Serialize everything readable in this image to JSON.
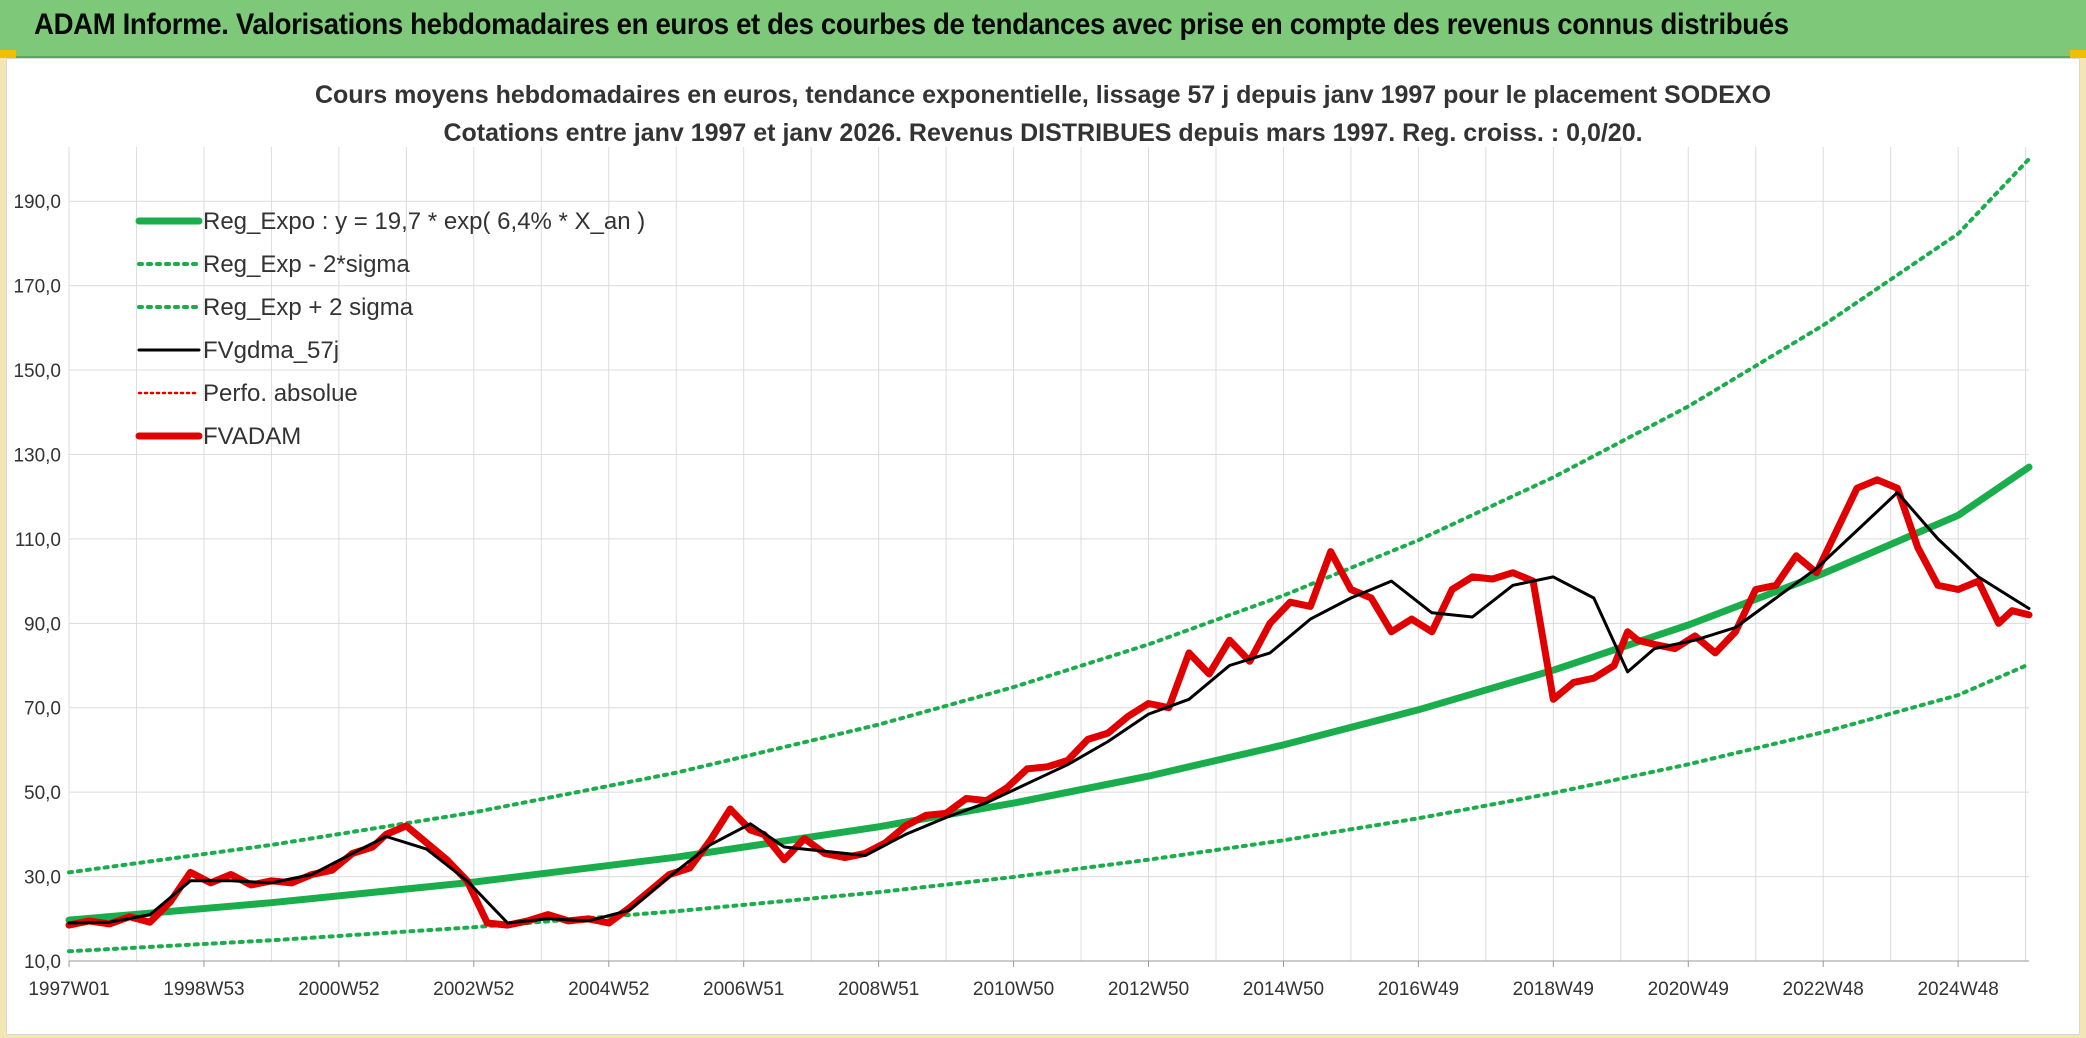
{
  "header": {
    "title": "ADAM Informe. Valorisations hebdomadaires en euros et des courbes de tendances avec prise en compte des revenus connus distribués"
  },
  "colors": {
    "header_bg": "#7ec87a",
    "trend_green": "#1aad4b",
    "price_red": "#e00000",
    "smooth_black": "#000000",
    "grid": "#dcdcdc"
  },
  "chart_data": {
    "type": "line",
    "title": "Cours moyens hebdomadaires en euros, tendance exponentielle, lissage 57 j depuis janv 1997 pour le placement SODEXO",
    "subtitle": "Cotations entre janv 1997 et janv 2026. Revenus DISTRIBUES depuis mars 1997. Reg. croiss. : 0,0/20.",
    "xlabel": "",
    "ylabel": "",
    "x_range": [
      1997.0,
      2026.05
    ],
    "ylim": [
      10,
      200
    ],
    "y_ticks": [
      "10,0",
      "30,0",
      "50,0",
      "70,0",
      "90,0",
      "110,0",
      "130,0",
      "150,0",
      "170,0",
      "190,0"
    ],
    "x_ticks": [
      {
        "label": "1997W01",
        "x": 1997.0
      },
      {
        "label": "1998W53",
        "x": 1999.0
      },
      {
        "label": "2000W52",
        "x": 2001.0
      },
      {
        "label": "2002W52",
        "x": 2003.0
      },
      {
        "label": "2004W52",
        "x": 2005.0
      },
      {
        "label": "2006W51",
        "x": 2007.0
      },
      {
        "label": "2008W51",
        "x": 2009.0
      },
      {
        "label": "2010W50",
        "x": 2011.0
      },
      {
        "label": "2012W50",
        "x": 2013.0
      },
      {
        "label": "2014W50",
        "x": 2015.0
      },
      {
        "label": "2016W49",
        "x": 2017.0
      },
      {
        "label": "2018W49",
        "x": 2019.0
      },
      {
        "label": "2020W49",
        "x": 2021.0
      },
      {
        "label": "2022W48",
        "x": 2023.0
      },
      {
        "label": "2024W48",
        "x": 2025.0
      }
    ],
    "grid": true,
    "legend_position": "top-left",
    "legend": [
      {
        "label": "Reg_Expo : y = 19,7 * exp( 6,4% *  X_an )",
        "style": "solid-thick",
        "color": "#1aad4b"
      },
      {
        "label": "Reg_Exp - 2*sigma",
        "style": "dotted",
        "color": "#1aad4b"
      },
      {
        "label": "Reg_Exp + 2 sigma",
        "style": "dotted",
        "color": "#1aad4b"
      },
      {
        "label": "FVgdma_57j",
        "style": "solid",
        "color": "#000000"
      },
      {
        "label": "Perfo. absolue",
        "style": "dotted-thin",
        "color": "#e00000"
      },
      {
        "label": "FVADAM",
        "style": "solid-thick",
        "color": "#e00000"
      }
    ],
    "series": [
      {
        "name": "Reg_Expo : y = 19,7 * exp( 6,4% *  X_an )",
        "color": "#1aad4b",
        "style": "solid-thick",
        "x": [
          1997.0,
          2000.0,
          2003.0,
          2006.0,
          2009.0,
          2011.0,
          2013.0,
          2015.0,
          2017.0,
          2019.0,
          2021.0,
          2023.0,
          2025.0,
          2026.05
        ],
        "values": [
          19.7,
          23.8,
          28.7,
          34.6,
          41.8,
          47.4,
          53.8,
          61.2,
          69.5,
          78.9,
          89.6,
          101.8,
          115.6,
          127.0
        ]
      },
      {
        "name": "Reg_Exp - 2*sigma",
        "color": "#1aad4b",
        "style": "dotted",
        "x": [
          1997.0,
          2000.0,
          2003.0,
          2006.0,
          2009.0,
          2011.0,
          2013.0,
          2015.0,
          2017.0,
          2019.0,
          2021.0,
          2023.0,
          2025.0,
          2026.05
        ],
        "values": [
          12.3,
          14.9,
          18.0,
          21.8,
          26.3,
          29.9,
          34.0,
          38.6,
          43.8,
          49.8,
          56.6,
          64.2,
          73.0,
          80.3
        ]
      },
      {
        "name": "Reg_Exp + 2 sigma",
        "color": "#1aad4b",
        "style": "dotted",
        "x": [
          1997.0,
          2000.0,
          2003.0,
          2006.0,
          2009.0,
          2011.0,
          2013.0,
          2015.0,
          2017.0,
          2019.0,
          2021.0,
          2023.0,
          2025.0,
          2026.05
        ],
        "values": [
          31.0,
          37.5,
          45.2,
          54.6,
          66.0,
          74.9,
          85.0,
          96.6,
          109.7,
          124.6,
          141.4,
          160.6,
          182.3,
          200.0
        ]
      },
      {
        "name": "FVADAM",
        "color": "#e00000",
        "style": "solid-thick",
        "x": [
          1997.0,
          1997.3,
          1997.6,
          1997.9,
          1998.2,
          1998.5,
          1998.8,
          1999.1,
          1999.4,
          1999.7,
          2000.0,
          2000.3,
          2000.6,
          2000.9,
          2001.2,
          2001.5,
          2001.7,
          2002.0,
          2002.3,
          2002.6,
          2002.9,
          2003.2,
          2003.5,
          2003.8,
          2004.1,
          2004.4,
          2004.7,
          2005.0,
          2005.3,
          2005.6,
          2005.9,
          2006.2,
          2006.5,
          2006.8,
          2007.1,
          2007.3,
          2007.6,
          2007.9,
          2008.2,
          2008.5,
          2008.8,
          2009.1,
          2009.4,
          2009.7,
          2010.0,
          2010.3,
          2010.6,
          2010.9,
          2011.2,
          2011.5,
          2011.8,
          2012.1,
          2012.4,
          2012.7,
          2013.0,
          2013.3,
          2013.6,
          2013.9,
          2014.2,
          2014.5,
          2014.8,
          2015.1,
          2015.4,
          2015.7,
          2016.0,
          2016.3,
          2016.6,
          2016.9,
          2017.2,
          2017.5,
          2017.8,
          2018.1,
          2018.4,
          2018.7,
          2019.0,
          2019.3,
          2019.6,
          2019.9,
          2020.1,
          2020.25,
          2020.5,
          2020.8,
          2021.1,
          2021.4,
          2021.7,
          2022.0,
          2022.3,
          2022.6,
          2022.9,
          2023.2,
          2023.5,
          2023.8,
          2024.1,
          2024.4,
          2024.7,
          2025.0,
          2025.3,
          2025.6,
          2025.8,
          2026.05
        ],
        "values": [
          18.5,
          19.5,
          18.8,
          20.5,
          19.2,
          24.0,
          31.0,
          28.5,
          30.5,
          28.0,
          29.0,
          28.5,
          30.5,
          31.5,
          35.5,
          37.0,
          40.0,
          42.0,
          38.0,
          34.0,
          29.0,
          19.0,
          18.5,
          19.5,
          21.0,
          19.5,
          20.0,
          19.0,
          22.5,
          26.5,
          30.5,
          32.0,
          38.5,
          46.0,
          41.0,
          40.0,
          34.0,
          39.0,
          35.5,
          34.5,
          35.5,
          38.0,
          42.0,
          44.5,
          45.0,
          48.5,
          48.0,
          51.0,
          55.5,
          56.0,
          57.5,
          62.5,
          64.0,
          68.0,
          71.0,
          70.0,
          83.0,
          78.0,
          86.0,
          81.0,
          90.0,
          95.0,
          94.0,
          107.0,
          98.0,
          96.0,
          88.0,
          91.0,
          88.0,
          98.0,
          101.0,
          100.5,
          102.0,
          100.0,
          72.0,
          76.0,
          77.0,
          80.0,
          88.0,
          86.0,
          85.0,
          84.0,
          87.0,
          83.0,
          88.0,
          98.0,
          99.0,
          106.0,
          102.0,
          112.0,
          122.0,
          124.0,
          122.0,
          108.0,
          99.0,
          98.0,
          100.0,
          90.0,
          93.0,
          92.0
        ]
      },
      {
        "name": "FVgdma_57j",
        "color": "#000000",
        "style": "solid",
        "x": [
          1997.0,
          1997.6,
          1998.2,
          1998.8,
          1999.4,
          2000.0,
          2000.6,
          2001.2,
          2001.7,
          2002.3,
          2002.9,
          2003.5,
          2004.1,
          2004.7,
          2005.3,
          2005.9,
          2006.5,
          2007.1,
          2007.6,
          2008.2,
          2008.8,
          2009.4,
          2010.0,
          2010.6,
          2011.2,
          2011.8,
          2012.4,
          2013.0,
          2013.6,
          2014.2,
          2014.8,
          2015.4,
          2016.0,
          2016.6,
          2017.2,
          2017.8,
          2018.4,
          2019.0,
          2019.6,
          2020.1,
          2020.5,
          2021.1,
          2021.7,
          2022.3,
          2022.9,
          2023.5,
          2024.1,
          2024.7,
          2025.3,
          2025.8,
          2026.05
        ],
        "values": [
          19.0,
          19.2,
          21.0,
          29.0,
          29.0,
          28.5,
          30.5,
          35.5,
          39.5,
          36.5,
          29.0,
          19.0,
          20.0,
          19.5,
          22.0,
          30.0,
          37.5,
          42.5,
          37.0,
          36.0,
          35.0,
          40.0,
          44.0,
          47.5,
          52.0,
          56.5,
          62.0,
          68.5,
          72.0,
          80.0,
          83.0,
          91.0,
          96.0,
          100.0,
          92.5,
          91.5,
          99.0,
          101.0,
          96.0,
          78.5,
          84.0,
          86.0,
          89.0,
          96.0,
          103.0,
          112.0,
          121.0,
          110.0,
          101.0,
          96.0,
          93.5
        ]
      }
    ]
  }
}
